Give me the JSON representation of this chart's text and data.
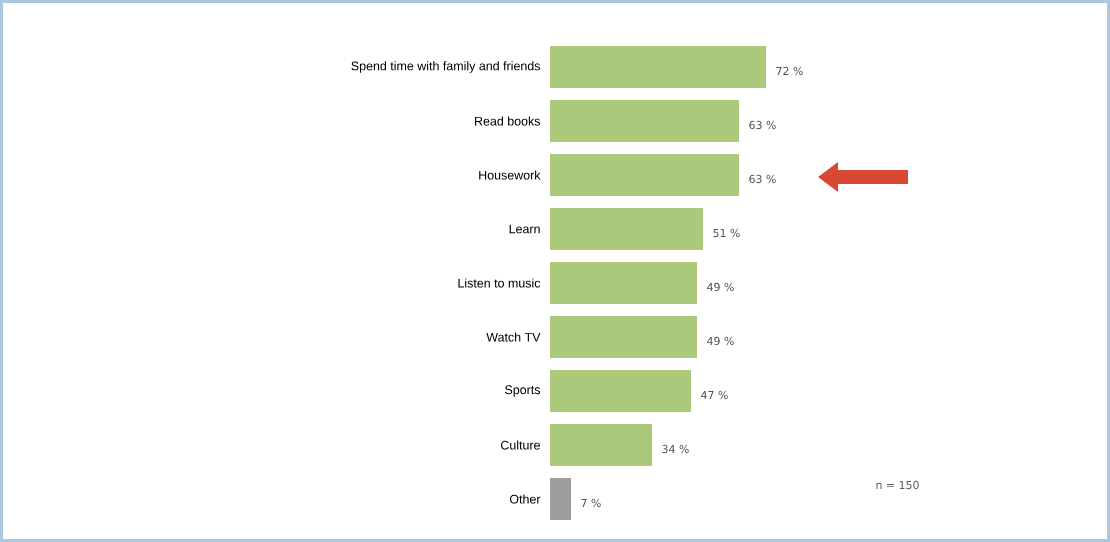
{
  "chart_data": {
    "type": "bar",
    "orientation": "horizontal",
    "categories": [
      "Spend time with family and friends",
      "Read books",
      "Housework",
      "Learn",
      "Listen to music",
      "Watch TV",
      "Sports",
      "Culture",
      "Other"
    ],
    "values": [
      72,
      63,
      63,
      51,
      49,
      49,
      47,
      34,
      7
    ],
    "value_labels": [
      "72 %",
      "63 %",
      "63 %",
      "51 %",
      "49 %",
      "49 %",
      "47 %",
      "34 %",
      "7 %"
    ],
    "colors": [
      "#aac97a",
      "#aac97a",
      "#aac97a",
      "#aac97a",
      "#aac97a",
      "#aac97a",
      "#aac97a",
      "#aac97a",
      "#9e9e9e"
    ],
    "annotations": [
      "n = 150"
    ]
  }
}
